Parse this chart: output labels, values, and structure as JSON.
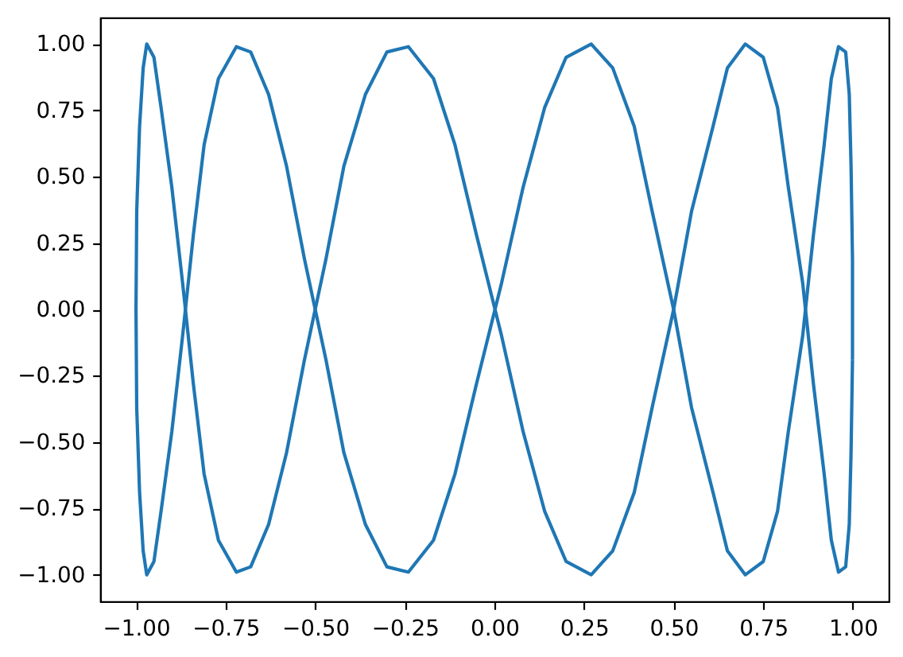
{
  "chart_data": {
    "type": "line",
    "series": [
      {
        "color": "#1f77b4",
        "x": [
          -1,
          -0.998,
          -0.99,
          -0.98,
          -0.97,
          -0.95,
          -0.93,
          -0.9,
          -0.87,
          -0.84,
          -0.81,
          -0.77,
          -0.72,
          -0.68,
          -0.63,
          -0.58,
          -0.53,
          -0.47,
          -0.42,
          -0.36,
          -0.3,
          -0.24,
          -0.17,
          -0.11,
          -0.05,
          0.02,
          0.08,
          0.14,
          0.2,
          0.27,
          0.33,
          0.39,
          0.44,
          0.5,
          0.55,
          0.61,
          0.65,
          0.7,
          0.75,
          0.79,
          0.82,
          0.86,
          0.89,
          0.92,
          0.94,
          0.96,
          0.98,
          0.99,
          0.995,
          0.999
        ],
        "values": [
          0,
          0.37,
          0.69,
          0.91,
          1,
          0.95,
          0.76,
          0.46,
          0.1,
          -0.28,
          -0.62,
          -0.87,
          -0.99,
          -0.97,
          -0.81,
          -0.54,
          -0.19,
          0.19,
          0.54,
          0.81,
          0.97,
          0.99,
          0.87,
          0.62,
          0.28,
          -0.1,
          -0.46,
          -0.76,
          -0.95,
          -1,
          -0.91,
          -0.69,
          -0.37,
          0,
          0.37,
          0.69,
          0.91,
          1,
          0.95,
          0.76,
          0.46,
          0.1,
          -0.28,
          -0.62,
          -0.87,
          -0.99,
          -0.97,
          -0.81,
          -0.54,
          -0.19
        ]
      },
      {
        "color": "#1f77b4",
        "x": [
          0.999,
          0.999,
          0.995,
          0.99,
          0.98,
          0.96,
          0.94,
          0.92,
          0.89,
          0.86,
          0.82,
          0.79,
          0.75,
          0.7,
          0.65,
          0.61,
          0.55,
          0.5,
          0.44,
          0.39,
          0.33,
          0.27,
          0.2,
          0.14,
          0.08,
          0.02,
          -0.05,
          -0.11,
          -0.17,
          -0.24,
          -0.3,
          -0.36,
          -0.42,
          -0.47,
          -0.53,
          -0.58,
          -0.63,
          -0.68,
          -0.72,
          -0.77,
          -0.81,
          -0.84,
          -0.87,
          -0.9,
          -0.93,
          -0.95,
          -0.97,
          -0.98,
          -0.99,
          -0.998,
          -1
        ],
        "values": [
          -0.19,
          0.19,
          0.54,
          0.81,
          0.97,
          0.99,
          0.87,
          0.62,
          0.28,
          -0.1,
          -0.46,
          -0.76,
          -0.95,
          -1,
          -0.91,
          -0.69,
          -0.37,
          0,
          0.37,
          0.69,
          0.91,
          1,
          0.95,
          0.76,
          0.46,
          0.1,
          -0.28,
          -0.62,
          -0.87,
          -0.99,
          -0.97,
          -0.81,
          -0.54,
          -0.19,
          0.19,
          0.54,
          0.81,
          0.97,
          0.99,
          0.87,
          0.62,
          0.28,
          -0.1,
          -0.46,
          -0.76,
          -0.95,
          -1,
          -0.91,
          -0.69,
          -0.37,
          0
        ]
      }
    ],
    "xlim": [
      -1.1,
      1.1
    ],
    "ylim": [
      -1.1,
      1.1
    ],
    "xticks": [
      {
        "value": -1,
        "label": "−1.00"
      },
      {
        "value": -0.75,
        "label": "−0.75"
      },
      {
        "value": -0.5,
        "label": "−0.50"
      },
      {
        "value": -0.25,
        "label": "−0.25"
      },
      {
        "value": 0,
        "label": "0.00"
      },
      {
        "value": 0.25,
        "label": "0.25"
      },
      {
        "value": 0.5,
        "label": "0.50"
      },
      {
        "value": 0.75,
        "label": "0.75"
      },
      {
        "value": 1,
        "label": "1.00"
      }
    ],
    "yticks": [
      {
        "value": -1,
        "label": "−1.00"
      },
      {
        "value": -0.75,
        "label": "−0.75"
      },
      {
        "value": -0.5,
        "label": "−0.50"
      },
      {
        "value": -0.25,
        "label": "−0.25"
      },
      {
        "value": 0,
        "label": "0.00"
      },
      {
        "value": 0.25,
        "label": "0.25"
      },
      {
        "value": 0.5,
        "label": "0.50"
      },
      {
        "value": 0.75,
        "label": "0.75"
      },
      {
        "value": 1,
        "label": "1.00"
      }
    ]
  }
}
